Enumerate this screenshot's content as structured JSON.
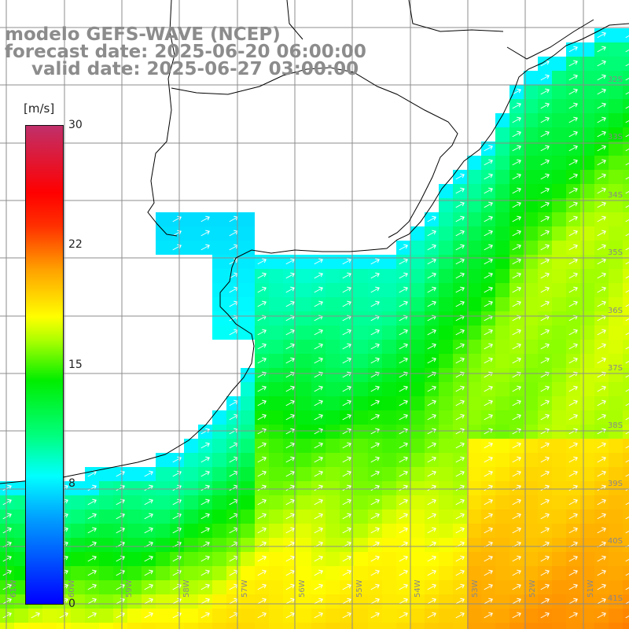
{
  "header": {
    "model": "modelo GEFS-WAVE (NCEP)",
    "forecast": "forecast date: 2025-06-20 06:00:00",
    "valid": "valid date: 2025-06-27 03:00:00"
  },
  "colorbar": {
    "units": "[m/s]",
    "ticks": [
      "0",
      "8",
      "15",
      "22",
      "30"
    ]
  },
  "lat_labels": [
    "32S",
    "33S",
    "34S",
    "35S",
    "36S",
    "37S",
    "38S",
    "39S",
    "40S",
    "41S"
  ],
  "lon_labels": [
    "61W",
    "60W",
    "59W",
    "58W",
    "57W",
    "56W",
    "55W",
    "54W",
    "53W",
    "52W",
    "51W"
  ],
  "colors": {
    "grid": "#8c8c8c",
    "coast": "#000000",
    "land": "#ffffff",
    "arrow": "#ffffff"
  }
}
